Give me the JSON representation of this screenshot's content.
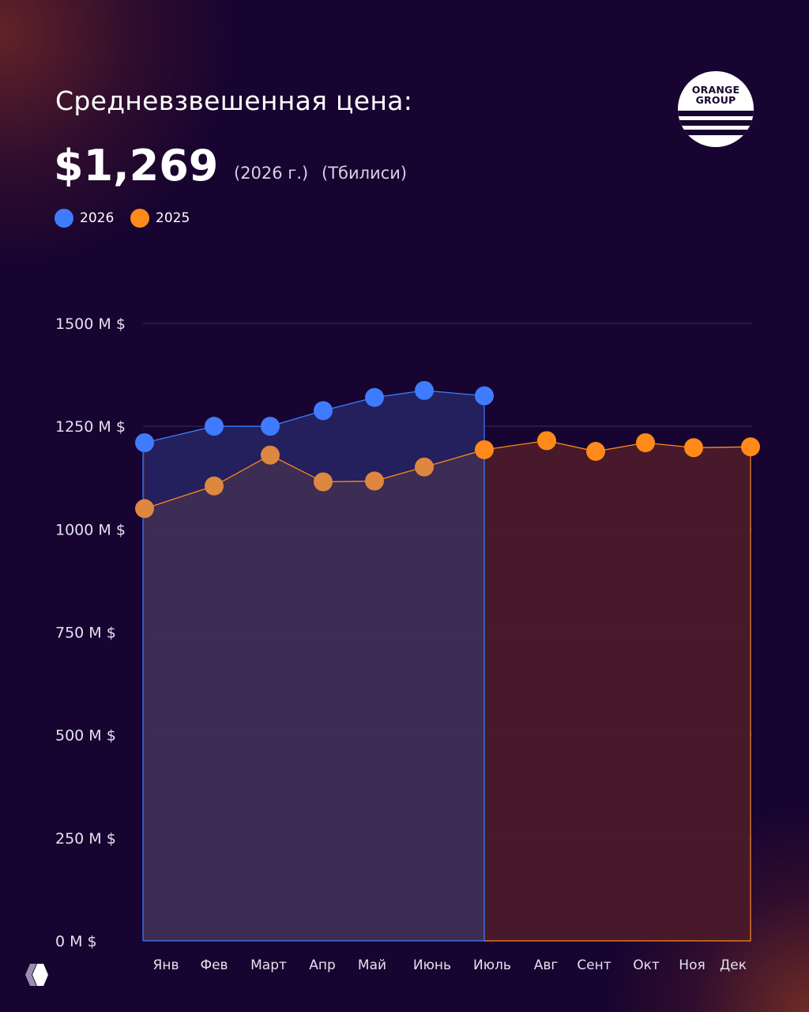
{
  "header": {
    "title": "Средневзвешенная цена:",
    "price": "$1,269",
    "year_note": "(2026 г.)",
    "city_note": "(Тбилиси)"
  },
  "logo": {
    "line1": "ORANGE",
    "line2": "GROUP"
  },
  "colors": {
    "series_2026": "#3f7bff",
    "series_2025": "#ff8a1a",
    "background": "#170430"
  },
  "chart_data": {
    "type": "area",
    "categories": [
      "Янв",
      "Фев",
      "Март",
      "Апр",
      "Май",
      "Июнь",
      "Июль",
      "Авг",
      "Сент",
      "Окт",
      "Ноя",
      "Дек"
    ],
    "series": [
      {
        "name": "2026",
        "values": [
          1210,
          1250,
          1250,
          1288,
          1320,
          1337,
          1324,
          null,
          null,
          null,
          null,
          null
        ]
      },
      {
        "name": "2025",
        "values": [
          1050,
          1105,
          1180,
          1115,
          1117,
          1151,
          1193,
          1215,
          1189,
          1210,
          1198,
          1200
        ]
      }
    ],
    "y_ticks": [
      "0 M $",
      "250 M $",
      "500 M $",
      "750 M $",
      "1000 M $",
      "1250 M $",
      "1500 M $"
    ],
    "y_tick_values": [
      0,
      250,
      500,
      750,
      1000,
      1250,
      1500
    ],
    "ylim": [
      0,
      1500
    ],
    "grid": true,
    "legend_position": "top-left"
  }
}
